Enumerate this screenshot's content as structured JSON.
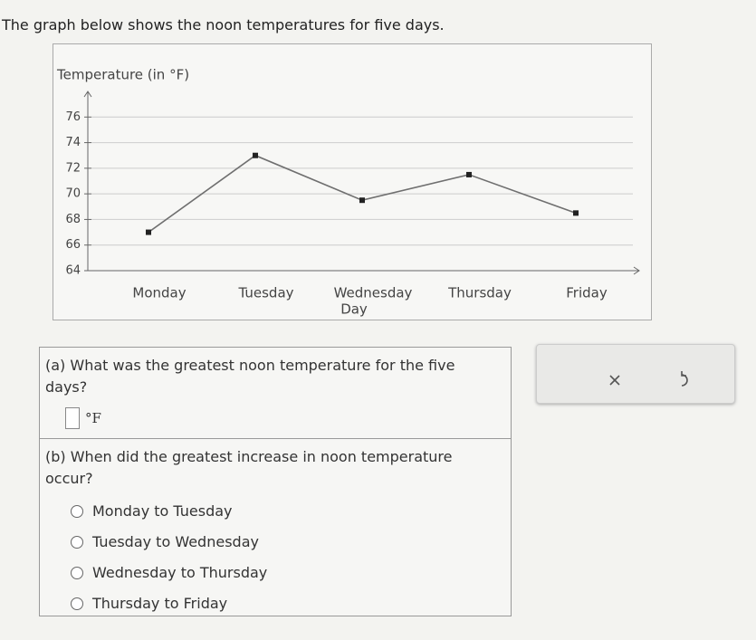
{
  "intro": "The graph below shows the noon temperatures for five days.",
  "chart_data": {
    "type": "line",
    "y_label": "Temperature (in °F)",
    "x_label": "Day",
    "categories": [
      "Monday",
      "Tuesday",
      "Wednesday",
      "Thursday",
      "Friday"
    ],
    "values": [
      67,
      73,
      69.5,
      71.5,
      68.5
    ],
    "color": "#6f6f6f",
    "ylim": [
      64,
      78
    ],
    "yticks": [
      64,
      66,
      68,
      70,
      72,
      74,
      76
    ],
    "grid": true
  },
  "question_a": {
    "prompt": "(a) What was the greatest noon temperature for the five days?",
    "unit": "°F"
  },
  "question_b": {
    "prompt": "(b) When did the greatest increase in noon temperature occur?",
    "options": [
      "Monday to Tuesday",
      "Tuesday to Wednesday",
      "Wednesday to Thursday",
      "Thursday to Friday"
    ]
  }
}
